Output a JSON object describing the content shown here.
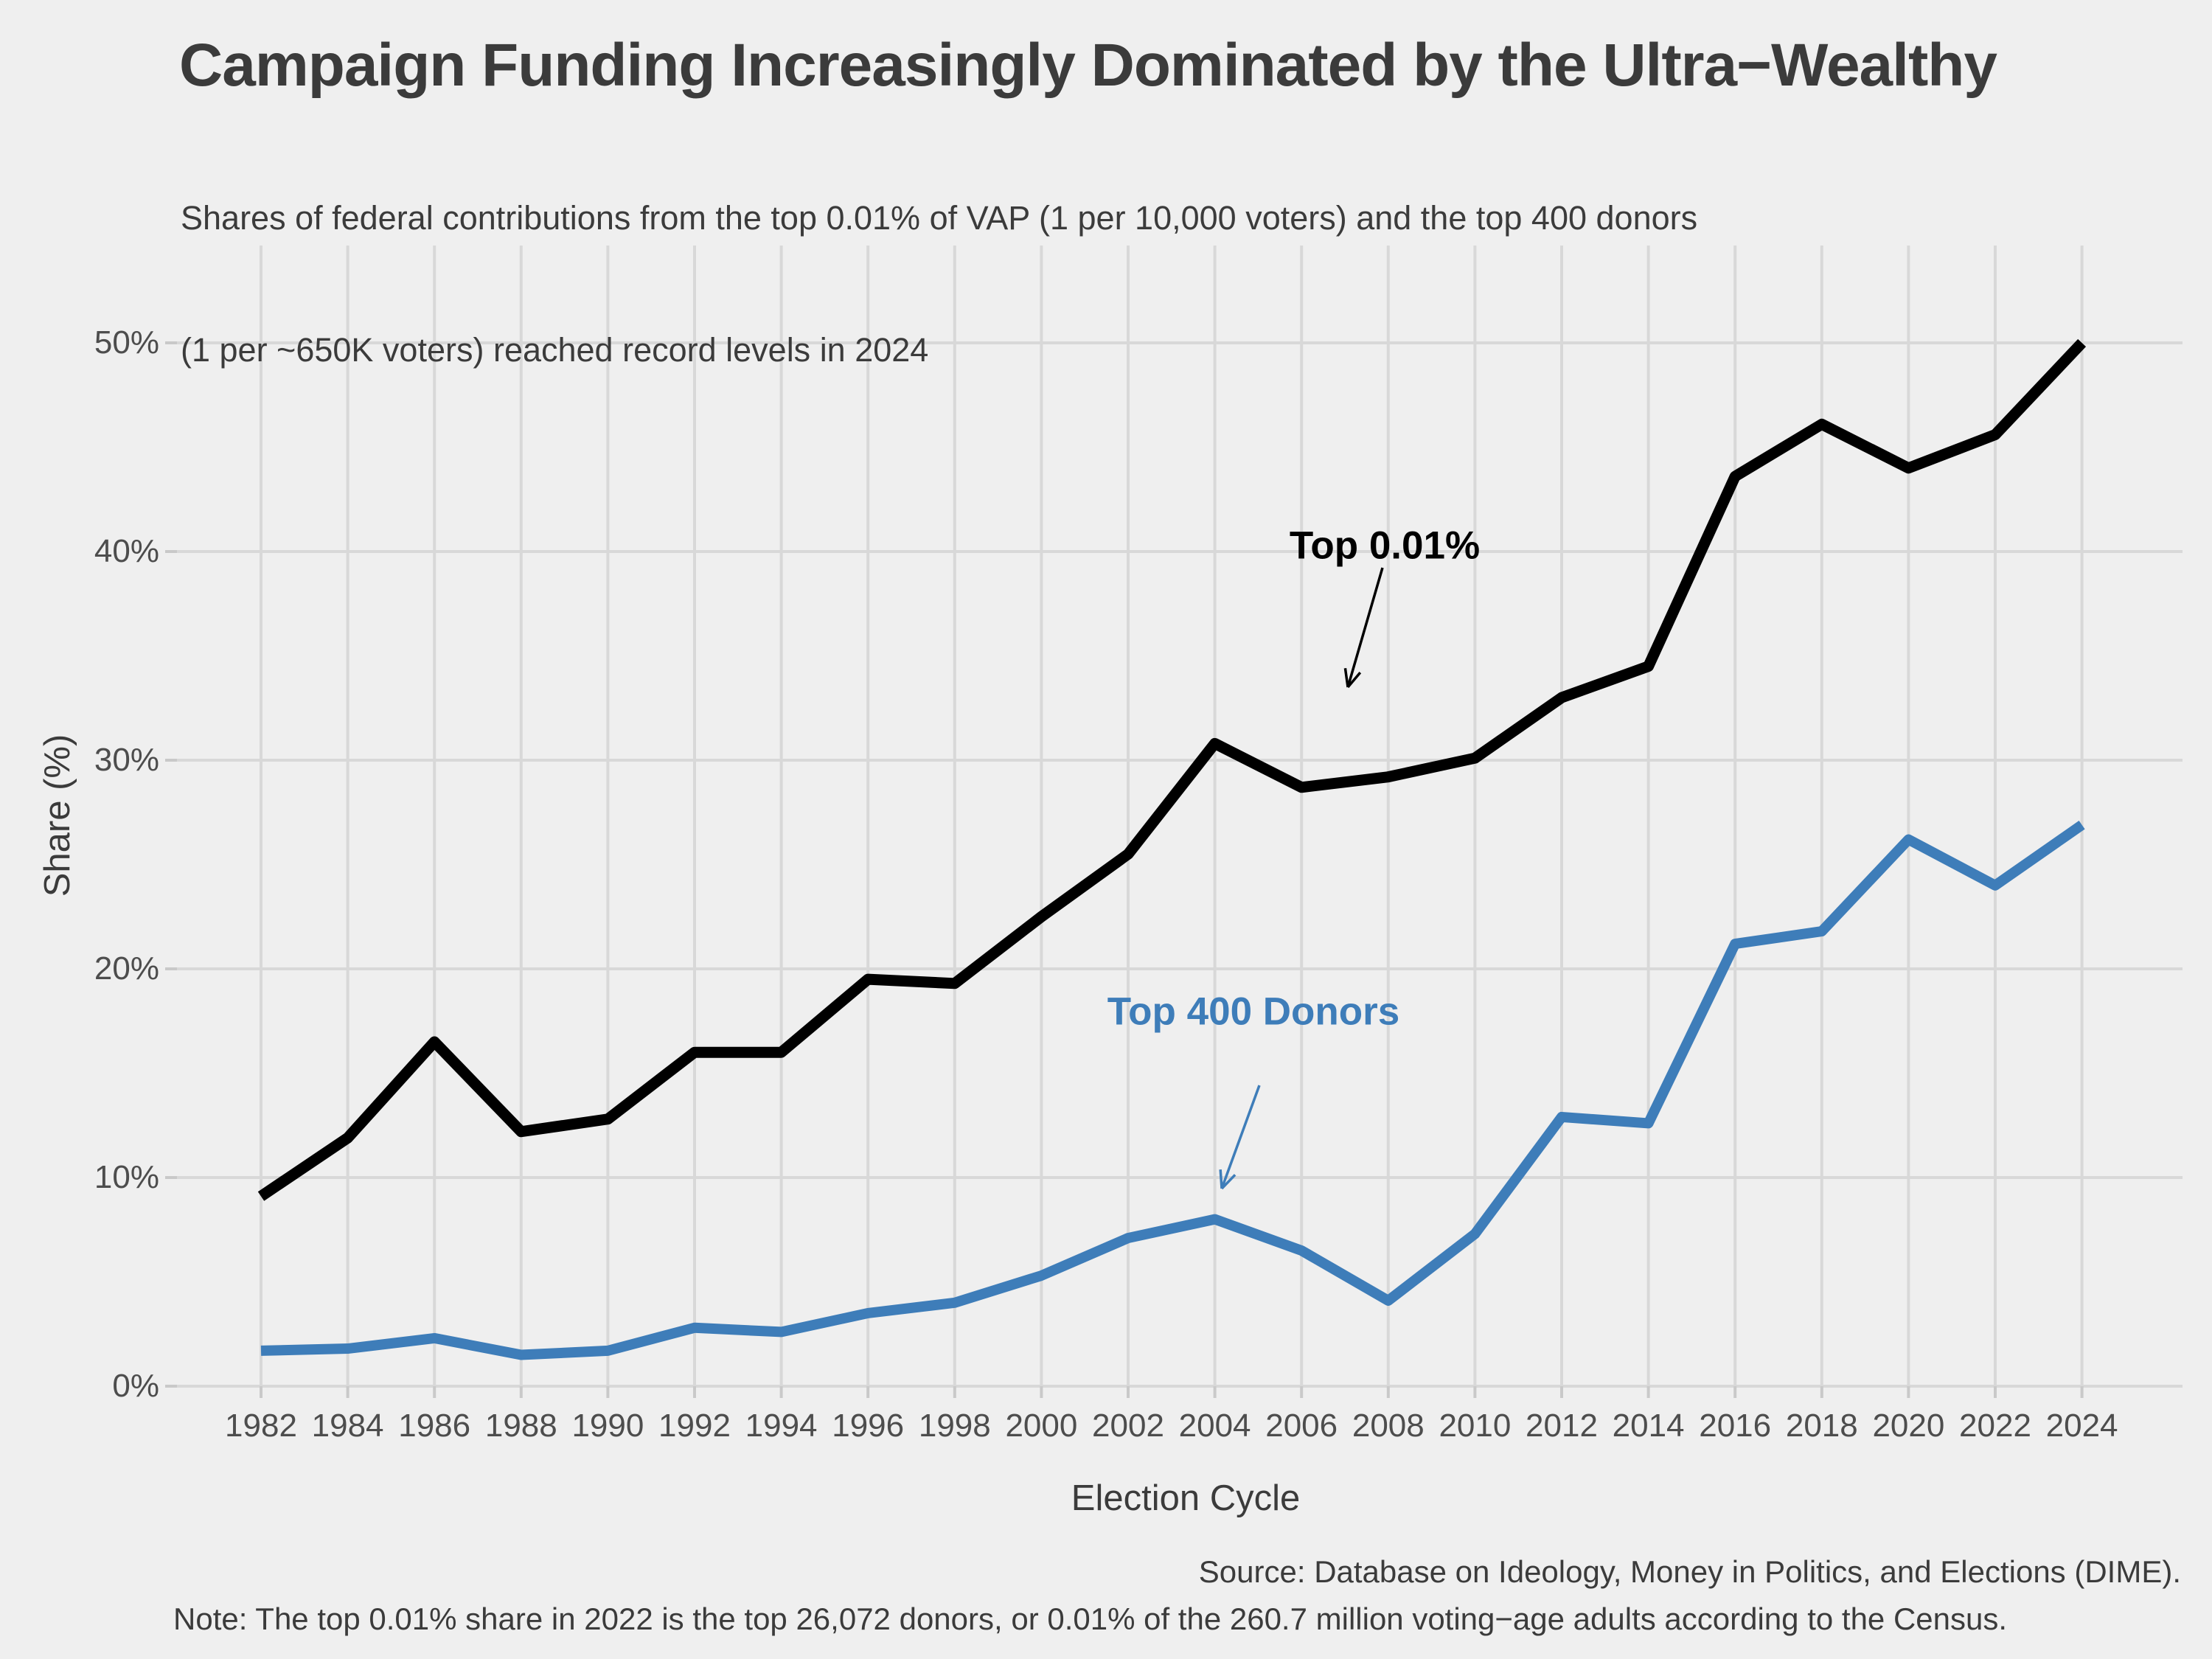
{
  "figure": {
    "title": "Campaign Funding Increasingly Dominated by the Ultra−Wealthy",
    "subtitle_lines": [
      "Shares of federal contributions from the top 0.01% of VAP (1 per 10,000 voters) and the top 400 donors",
      "(1 per ~650K voters) reached record levels in 2024"
    ]
  },
  "chart_data": {
    "type": "line",
    "title": "Campaign Funding Increasingly Dominated by the Ultra−Wealthy",
    "subtitle": [
      "Shares of federal contributions from the top 0.01% of VAP (1 per 10,000 voters) and the top 400 donors",
      "(1 per ~650K voters) reached record levels in 2024"
    ],
    "xlabel": "Election Cycle",
    "ylabel": "Share (%)",
    "x": [
      1982,
      1984,
      1986,
      1988,
      1990,
      1992,
      1994,
      1996,
      1998,
      2000,
      2002,
      2004,
      2006,
      2008,
      2010,
      2012,
      2014,
      2016,
      2018,
      2020,
      2022,
      2024
    ],
    "series": [
      {
        "name": "Top 0.01%",
        "color": "#000000",
        "values": [
          9.1,
          11.9,
          16.5,
          12.2,
          12.8,
          16.0,
          16.0,
          19.5,
          19.3,
          22.5,
          25.5,
          30.8,
          28.7,
          29.2,
          30.1,
          33.0,
          34.5,
          43.6,
          46.1,
          44.0,
          45.6,
          50.0
        ]
      },
      {
        "name": "Top 400 Donors",
        "color": "#3e7db9",
        "values": [
          1.7,
          1.8,
          2.3,
          1.5,
          1.7,
          2.8,
          2.6,
          3.5,
          4.0,
          5.3,
          7.1,
          8.0,
          6.5,
          4.1,
          7.3,
          12.9,
          12.6,
          21.2,
          21.8,
          26.2,
          24.0,
          26.9
        ]
      }
    ],
    "ylim": [
      0,
      54.7
    ],
    "yticks": [
      {
        "value": 0,
        "label": "0%"
      },
      {
        "value": 10,
        "label": "10%"
      },
      {
        "value": 20,
        "label": "20%"
      },
      {
        "value": 30,
        "label": "30%"
      },
      {
        "value": 40,
        "label": "40%"
      },
      {
        "value": 50,
        "label": "50%"
      }
    ],
    "grid": true,
    "legend": "inline-annotations"
  },
  "annotations": [
    {
      "text": "Top 0.01%",
      "color": "#000000"
    },
    {
      "text": "Top 400 Donors",
      "color": "#3e7db9"
    }
  ],
  "footer": {
    "source": "Source: Database on Ideology, Money in Politics, and Elections (DIME).",
    "note": "Note: The top 0.01% share in 2022 is the top 26,072 donors, or 0.01% of the 260.7 million voting−age adults according to the Census."
  },
  "colors": {
    "background": "#efefef",
    "gridline": "#d8d8d8",
    "tick_mark": "#c9c9c9",
    "text_dark": "#3b3b3b",
    "text_tick": "#4d4d4d",
    "accent_blue": "#3e7db9",
    "line_black": "#000000"
  }
}
